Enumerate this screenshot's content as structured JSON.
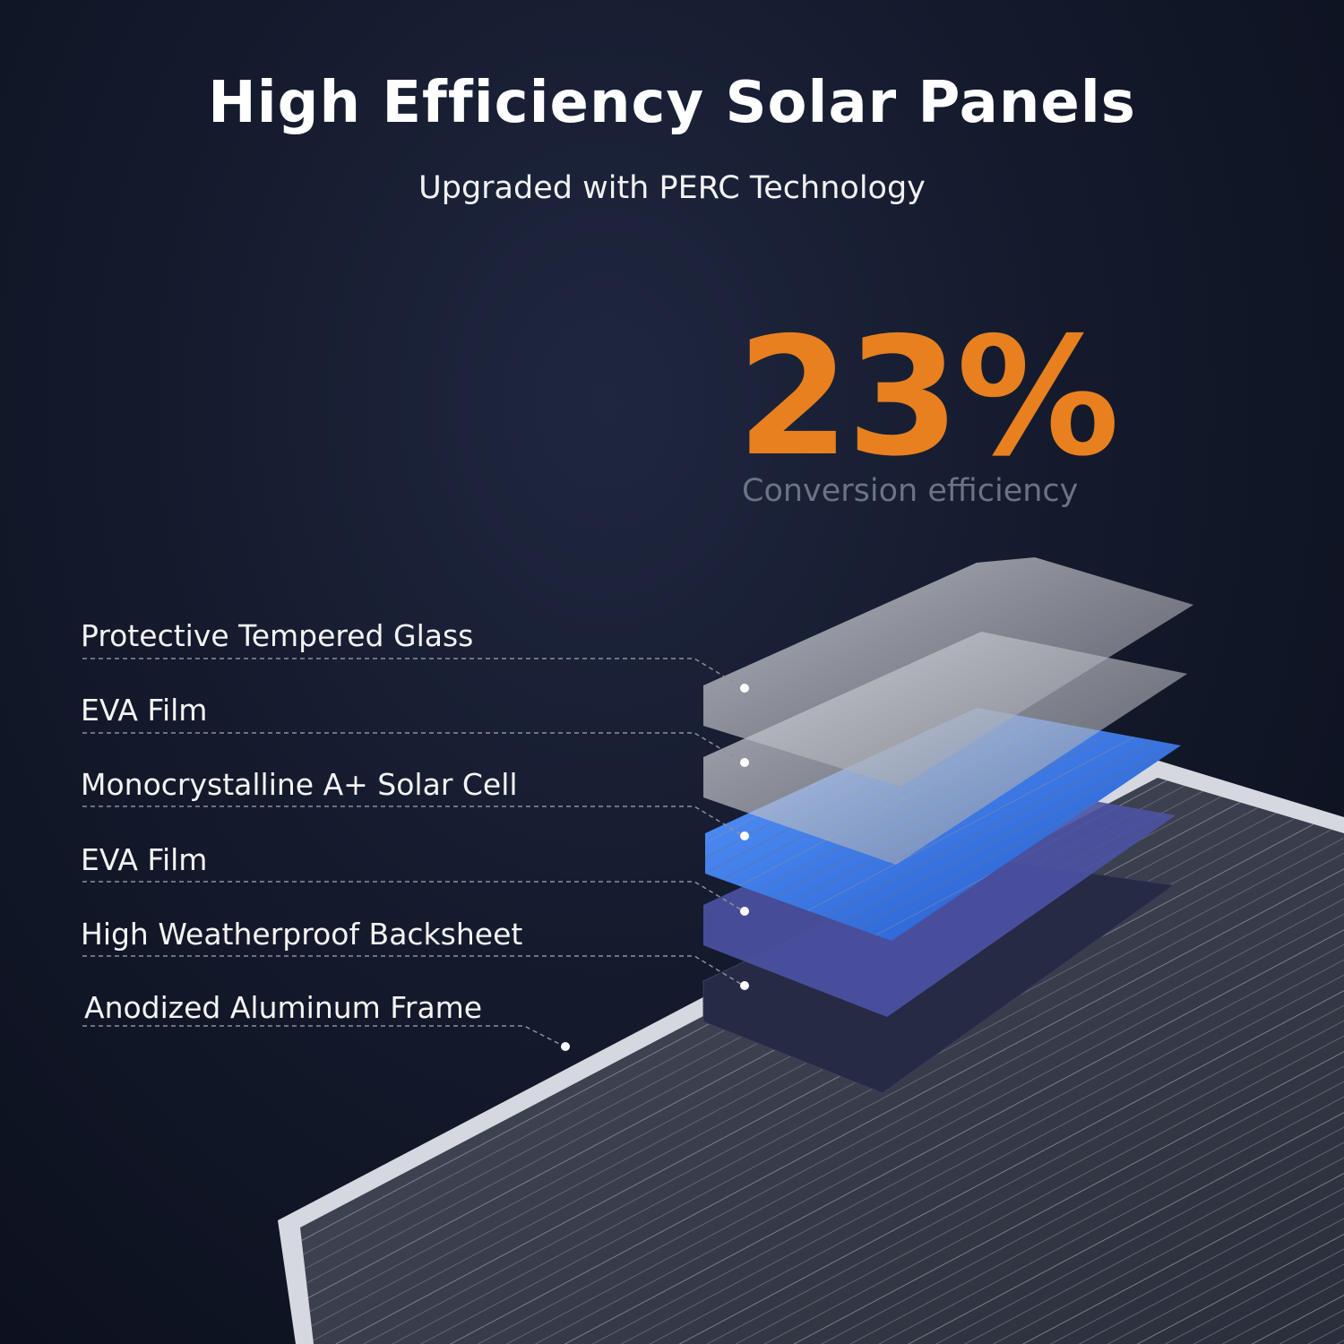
{
  "header": {
    "title": "High Efficiency Solar Panels",
    "subtitle": "Upgraded with PERC Technology"
  },
  "highlight": {
    "value": "23%",
    "caption": "Conversion efficiency",
    "accent_color": "#e8801f"
  },
  "layers": [
    {
      "label": "Protective Tempered Glass",
      "color": "#c9ccd3"
    },
    {
      "label": "EVA Film",
      "color": "#b8bbc4"
    },
    {
      "label": "Monocrystalline A+ Solar Cell",
      "color": "#2f6fe0"
    },
    {
      "label": "EVA Film",
      "color": "#5a5fae"
    },
    {
      "label": "High Weatherproof Backsheet",
      "color": "#2b2e4c"
    },
    {
      "label": "Anodized Aluminum Frame",
      "color": "#c8ccd2"
    }
  ]
}
